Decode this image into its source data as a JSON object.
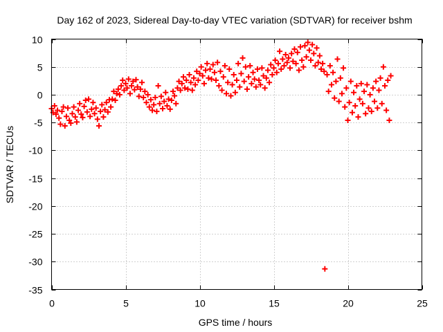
{
  "chart_data": {
    "type": "scatter",
    "title": "Day 162 of 2023, Sidereal Day-to-day VTEC variation (SDTVAR) for receiver bshm",
    "xlabel": "GPS time / hours",
    "ylabel": "SDTVAR / TECUs",
    "xlim": [
      0,
      25
    ],
    "ylim": [
      -35,
      10
    ],
    "xticks": [
      0,
      5,
      10,
      15,
      20,
      25
    ],
    "yticks": [
      10,
      5,
      0,
      -5,
      -10,
      -15,
      -20,
      -25,
      -30,
      -35
    ],
    "grid": true,
    "marker": "+",
    "series_color": "#ff0000",
    "series": [
      {
        "name": "SDTVAR",
        "points": [
          [
            0.0,
            -2.5
          ],
          [
            0.1,
            -3.2
          ],
          [
            0.2,
            -2.0
          ],
          [
            0.3,
            -3.5
          ],
          [
            0.4,
            -2.8
          ],
          [
            0.5,
            -4.2
          ],
          [
            0.6,
            -5.3
          ],
          [
            0.7,
            -3.0
          ],
          [
            0.8,
            -2.2
          ],
          [
            0.9,
            -5.6
          ],
          [
            1.0,
            -3.9
          ],
          [
            1.1,
            -2.4
          ],
          [
            1.2,
            -4.6
          ],
          [
            1.3,
            -5.1
          ],
          [
            1.4,
            -3.4
          ],
          [
            1.5,
            -2.2
          ],
          [
            1.6,
            -4.0
          ],
          [
            1.7,
            -4.9
          ],
          [
            1.8,
            -2.8
          ],
          [
            1.9,
            -1.6
          ],
          [
            2.0,
            -3.5
          ],
          [
            2.1,
            -4.1
          ],
          [
            2.2,
            -2.1
          ],
          [
            2.3,
            -1.0
          ],
          [
            2.4,
            -3.1
          ],
          [
            2.5,
            -0.8
          ],
          [
            2.6,
            -3.9
          ],
          [
            2.7,
            -2.6
          ],
          [
            2.8,
            -1.4
          ],
          [
            2.9,
            -3.4
          ],
          [
            3.0,
            -2.4
          ],
          [
            3.1,
            -4.4
          ],
          [
            3.2,
            -5.6
          ],
          [
            3.3,
            -3.0
          ],
          [
            3.4,
            -1.8
          ],
          [
            3.5,
            -4.0
          ],
          [
            3.6,
            -2.7
          ],
          [
            3.7,
            -1.4
          ],
          [
            3.8,
            -3.1
          ],
          [
            3.9,
            -0.9
          ],
          [
            4.0,
            -2.2
          ],
          [
            4.1,
            -0.8
          ],
          [
            4.2,
            0.6
          ],
          [
            4.3,
            -1.0
          ],
          [
            4.4,
            0.2
          ],
          [
            4.5,
            1.0
          ],
          [
            4.6,
            0.0
          ],
          [
            4.7,
            1.6
          ],
          [
            4.8,
            2.6
          ],
          [
            4.9,
            0.8
          ],
          [
            5.0,
            2.0
          ],
          [
            5.1,
            1.2
          ],
          [
            5.2,
            2.8
          ],
          [
            5.3,
            0.2
          ],
          [
            5.4,
            1.6
          ],
          [
            5.5,
            2.4
          ],
          [
            5.6,
            0.9
          ],
          [
            5.7,
            2.7
          ],
          [
            5.8,
            1.4
          ],
          [
            5.9,
            -0.3
          ],
          [
            6.0,
            1.0
          ],
          [
            6.1,
            2.2
          ],
          [
            6.2,
            -0.5
          ],
          [
            6.3,
            0.6
          ],
          [
            6.4,
            -1.4
          ],
          [
            6.5,
            0.0
          ],
          [
            6.6,
            -2.2
          ],
          [
            6.7,
            -0.9
          ],
          [
            6.8,
            -2.8
          ],
          [
            6.9,
            -1.8
          ],
          [
            7.0,
            -0.5
          ],
          [
            7.1,
            -3.0
          ],
          [
            7.2,
            1.6
          ],
          [
            7.3,
            -1.6
          ],
          [
            7.4,
            -0.3
          ],
          [
            7.5,
            -2.5
          ],
          [
            7.6,
            -1.2
          ],
          [
            7.7,
            0.4
          ],
          [
            7.8,
            -2.0
          ],
          [
            7.9,
            -0.8
          ],
          [
            8.0,
            -2.6
          ],
          [
            8.1,
            -1.0
          ],
          [
            8.2,
            0.6
          ],
          [
            8.3,
            -0.2
          ],
          [
            8.4,
            -1.6
          ],
          [
            8.5,
            1.2
          ],
          [
            8.6,
            2.4
          ],
          [
            8.7,
            0.8
          ],
          [
            8.8,
            2.0
          ],
          [
            8.9,
            3.2
          ],
          [
            9.0,
            1.2
          ],
          [
            9.1,
            2.6
          ],
          [
            9.2,
            1.0
          ],
          [
            9.3,
            3.6
          ],
          [
            9.4,
            2.2
          ],
          [
            9.5,
            0.8
          ],
          [
            9.6,
            3.0
          ],
          [
            9.7,
            1.8
          ],
          [
            9.8,
            4.2
          ],
          [
            9.9,
            2.6
          ],
          [
            10.0,
            3.8
          ],
          [
            10.1,
            5.0
          ],
          [
            10.2,
            3.4
          ],
          [
            10.3,
            2.0
          ],
          [
            10.4,
            4.4
          ],
          [
            10.5,
            5.6
          ],
          [
            10.6,
            3.0
          ],
          [
            10.7,
            4.6
          ],
          [
            10.8,
            2.8
          ],
          [
            10.9,
            5.4
          ],
          [
            11.0,
            4.0
          ],
          [
            11.1,
            2.6
          ],
          [
            11.2,
            5.8
          ],
          [
            11.3,
            1.6
          ],
          [
            11.4,
            4.2
          ],
          [
            11.5,
            0.8
          ],
          [
            11.6,
            3.2
          ],
          [
            11.7,
            5.2
          ],
          [
            11.8,
            0.2
          ],
          [
            11.9,
            2.2
          ],
          [
            12.0,
            4.6
          ],
          [
            12.1,
            -0.2
          ],
          [
            12.2,
            1.8
          ],
          [
            12.3,
            3.6
          ],
          [
            12.4,
            0.4
          ],
          [
            12.5,
            2.6
          ],
          [
            12.6,
            5.6
          ],
          [
            12.7,
            1.4
          ],
          [
            12.8,
            3.8
          ],
          [
            12.9,
            6.6
          ],
          [
            13.0,
            2.4
          ],
          [
            13.1,
            5.0
          ],
          [
            13.2,
            1.0
          ],
          [
            13.3,
            3.2
          ],
          [
            13.4,
            5.2
          ],
          [
            13.5,
            2.0
          ],
          [
            13.6,
            4.0
          ],
          [
            13.7,
            2.8
          ],
          [
            13.8,
            1.4
          ],
          [
            13.9,
            4.6
          ],
          [
            14.0,
            2.6
          ],
          [
            14.1,
            1.8
          ],
          [
            14.2,
            4.8
          ],
          [
            14.3,
            3.4
          ],
          [
            14.4,
            1.2
          ],
          [
            14.5,
            3.0
          ],
          [
            14.6,
            4.4
          ],
          [
            14.7,
            2.2
          ],
          [
            14.8,
            5.4
          ],
          [
            14.9,
            3.6
          ],
          [
            15.0,
            4.8
          ],
          [
            15.1,
            6.2
          ],
          [
            15.2,
            4.0
          ],
          [
            15.3,
            5.6
          ],
          [
            15.4,
            7.8
          ],
          [
            15.5,
            4.6
          ],
          [
            15.6,
            6.4
          ],
          [
            15.7,
            5.2
          ],
          [
            15.8,
            7.2
          ],
          [
            15.9,
            5.8
          ],
          [
            16.0,
            6.6
          ],
          [
            16.1,
            4.8
          ],
          [
            16.2,
            7.4
          ],
          [
            16.3,
            6.0
          ],
          [
            16.4,
            8.2
          ],
          [
            16.5,
            5.6
          ],
          [
            16.6,
            7.6
          ],
          [
            16.7,
            4.4
          ],
          [
            16.8,
            8.6
          ],
          [
            16.9,
            6.2
          ],
          [
            17.0,
            5.0
          ],
          [
            17.1,
            8.8
          ],
          [
            17.2,
            6.8
          ],
          [
            17.3,
            9.4
          ],
          [
            17.4,
            8.0
          ],
          [
            17.5,
            6.2
          ],
          [
            17.6,
            9.0
          ],
          [
            17.7,
            7.4
          ],
          [
            17.8,
            5.2
          ],
          [
            17.9,
            8.4
          ],
          [
            18.0,
            5.8
          ],
          [
            18.1,
            7.0
          ],
          [
            18.2,
            4.6
          ],
          [
            18.3,
            5.6
          ],
          [
            18.4,
            4.2
          ],
          [
            18.45,
            -31.3
          ],
          [
            18.6,
            3.6
          ],
          [
            18.7,
            0.6
          ],
          [
            18.8,
            5.2
          ],
          [
            18.9,
            1.8
          ],
          [
            19.0,
            4.0
          ],
          [
            19.1,
            -0.6
          ],
          [
            19.2,
            2.4
          ],
          [
            19.3,
            6.4
          ],
          [
            19.4,
            -1.2
          ],
          [
            19.5,
            3.0
          ],
          [
            19.6,
            0.2
          ],
          [
            19.7,
            4.8
          ],
          [
            19.8,
            -2.2
          ],
          [
            19.9,
            1.2
          ],
          [
            20.0,
            -4.6
          ],
          [
            20.1,
            -1.4
          ],
          [
            20.2,
            2.4
          ],
          [
            20.3,
            -3.2
          ],
          [
            20.4,
            0.4
          ],
          [
            20.5,
            -2.0
          ],
          [
            20.6,
            1.6
          ],
          [
            20.7,
            -4.0
          ],
          [
            20.8,
            -0.8
          ],
          [
            20.9,
            2.0
          ],
          [
            21.0,
            -1.6
          ],
          [
            21.1,
            0.6
          ],
          [
            21.2,
            -3.4
          ],
          [
            21.3,
            1.8
          ],
          [
            21.4,
            -2.4
          ],
          [
            21.5,
            0.0
          ],
          [
            21.6,
            -3.0
          ],
          [
            21.7,
            1.2
          ],
          [
            21.8,
            -1.2
          ],
          [
            21.9,
            2.4
          ],
          [
            22.0,
            -2.4
          ],
          [
            22.1,
            0.8
          ],
          [
            22.2,
            3.0
          ],
          [
            22.3,
            -1.6
          ],
          [
            22.4,
            5.0
          ],
          [
            22.5,
            1.6
          ],
          [
            22.6,
            -2.8
          ],
          [
            22.7,
            2.6
          ],
          [
            22.8,
            -4.6
          ],
          [
            22.9,
            3.4
          ]
        ]
      }
    ]
  }
}
